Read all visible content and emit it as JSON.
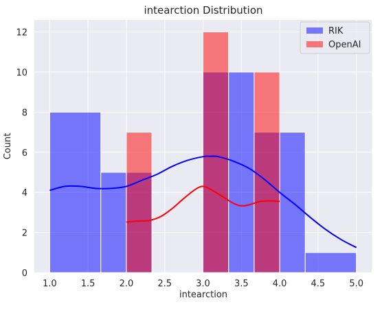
{
  "chart_data": {
    "type": "bar",
    "title": "intearction Distribution",
    "xlabel": "intearction",
    "ylabel": "Count",
    "xlim": [
      0.8,
      5.2
    ],
    "ylim": [
      0,
      12.6
    ],
    "x_ticks": [
      1.0,
      1.5,
      2.0,
      2.5,
      3.0,
      3.5,
      4.0,
      4.5,
      5.0
    ],
    "x_tick_labels": [
      "1.0",
      "1.5",
      "2.0",
      "2.5",
      "3.0",
      "3.5",
      "4.0",
      "4.5",
      "5.0"
    ],
    "y_ticks": [
      0,
      2,
      4,
      6,
      8,
      10,
      12
    ],
    "y_tick_labels": [
      "0",
      "2",
      "4",
      "6",
      "8",
      "10",
      "12"
    ],
    "grid": true,
    "legend_position": "top-right",
    "series": [
      {
        "name": "RIK",
        "color": "#0000ff",
        "bins": [
          {
            "x0": 1.0,
            "x1": 1.667,
            "count": 8
          },
          {
            "x0": 1.667,
            "x1": 2.0,
            "count": 5
          },
          {
            "x0": 2.0,
            "x1": 2.333,
            "count": 5
          },
          {
            "x0": 3.0,
            "x1": 3.333,
            "count": 10
          },
          {
            "x0": 3.333,
            "x1": 3.667,
            "count": 10
          },
          {
            "x0": 3.667,
            "x1": 4.0,
            "count": 7
          },
          {
            "x0": 4.0,
            "x1": 4.333,
            "count": 7
          },
          {
            "x0": 4.333,
            "x1": 5.0,
            "count": 1
          }
        ],
        "kde": {
          "x": [
            1.0,
            1.2,
            1.4,
            1.6,
            1.8,
            2.0,
            2.2,
            2.4,
            2.6,
            2.8,
            3.0,
            3.1,
            3.2,
            3.4,
            3.6,
            3.8,
            4.0,
            4.2,
            4.4,
            4.6,
            4.8,
            5.0
          ],
          "y": [
            4.1,
            4.3,
            4.3,
            4.2,
            4.2,
            4.3,
            4.6,
            4.9,
            5.3,
            5.6,
            5.78,
            5.8,
            5.78,
            5.55,
            5.2,
            4.65,
            4.0,
            3.4,
            2.75,
            2.15,
            1.65,
            1.25
          ]
        }
      },
      {
        "name": "OpenAI",
        "color": "#ff0000",
        "bins": [
          {
            "x0": 2.0,
            "x1": 2.333,
            "count": 7
          },
          {
            "x0": 3.0,
            "x1": 3.333,
            "count": 12
          },
          {
            "x0": 3.667,
            "x1": 4.0,
            "count": 10
          }
        ],
        "kde": {
          "x": [
            2.0,
            2.15,
            2.3,
            2.45,
            2.6,
            2.75,
            2.9,
            3.0,
            3.1,
            3.25,
            3.4,
            3.5,
            3.6,
            3.75,
            3.9,
            4.0
          ],
          "y": [
            2.52,
            2.57,
            2.6,
            2.8,
            3.2,
            3.7,
            4.15,
            4.3,
            4.15,
            3.8,
            3.45,
            3.33,
            3.38,
            3.55,
            3.58,
            3.55
          ]
        }
      }
    ]
  }
}
